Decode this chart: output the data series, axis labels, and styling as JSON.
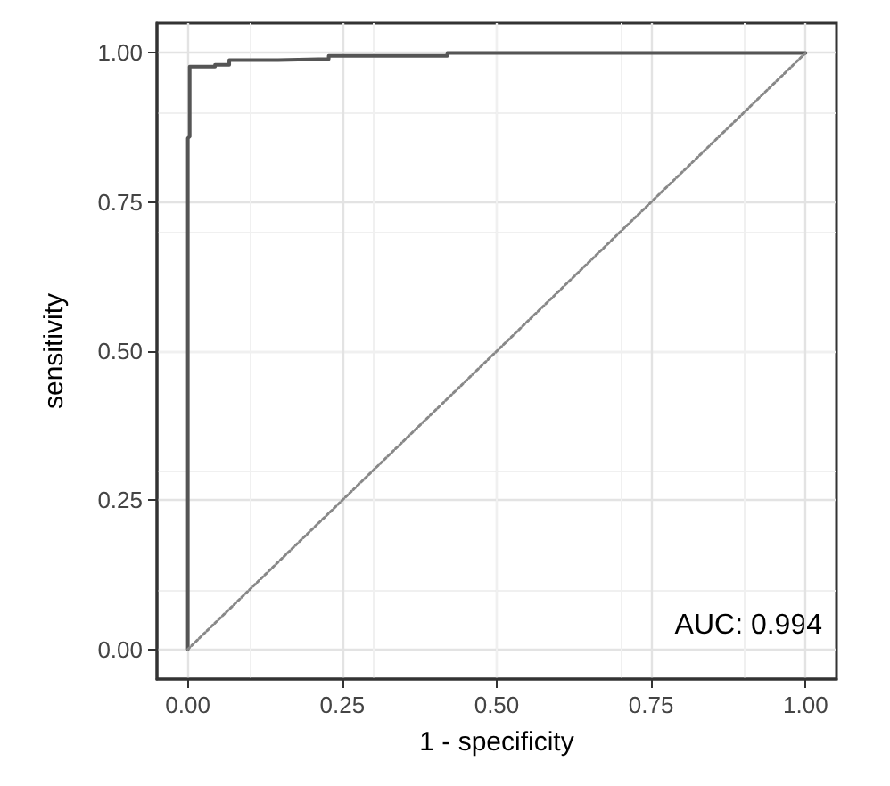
{
  "chart_data": {
    "type": "line",
    "xlabel": "1 - specificity",
    "ylabel": "sensitivity",
    "annotations": [
      "AUC: 0.994"
    ],
    "xlim": [
      -0.05,
      1.05
    ],
    "ylim": [
      -0.05,
      1.05
    ],
    "xticks": [
      {
        "value": 0,
        "label": "0.00"
      },
      {
        "value": 0.25,
        "label": "0.25"
      },
      {
        "value": 0.5,
        "label": "0.50"
      },
      {
        "value": 0.75,
        "label": "0.75"
      },
      {
        "value": 1,
        "label": "1.00"
      }
    ],
    "yticks": [
      {
        "value": 0,
        "label": "0.00"
      },
      {
        "value": 0.25,
        "label": "0.25"
      },
      {
        "value": 0.5,
        "label": "0.50"
      },
      {
        "value": 0.75,
        "label": "0.75"
      },
      {
        "value": 1,
        "label": "1.00"
      }
    ],
    "grid": true,
    "marker": "none",
    "series": [
      {
        "color": "#555555",
        "line_style": "solid",
        "x": [
          0,
          0,
          0.003,
          0.003,
          0.044,
          0.044,
          0.067,
          0.067,
          0.146,
          0.146,
          0.228,
          0.228,
          0.42,
          0.42,
          1
        ],
        "values": [
          0,
          0.857,
          0.86,
          0.977,
          0.977,
          0.98,
          0.98,
          0.988,
          0.988,
          0.99,
          0.99,
          0.995,
          0.995,
          1,
          1
        ]
      },
      {
        "color": "#888888",
        "line_style": "dotted",
        "x": [
          0,
          1
        ],
        "values": [
          0,
          1
        ]
      }
    ]
  }
}
